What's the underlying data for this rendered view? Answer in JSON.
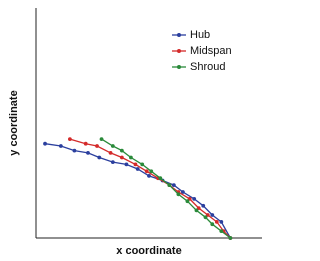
{
  "chart_data": {
    "type": "line",
    "xlabel": "x coordinate",
    "ylabel": "y coordinate",
    "xlim": [
      0,
      1
    ],
    "ylim": [
      0,
      1
    ],
    "legend": "upper right",
    "series": [
      {
        "name": "Hub",
        "color": "#2b3f9e",
        "x": [
          0.04,
          0.11,
          0.17,
          0.23,
          0.28,
          0.34,
          0.4,
          0.45,
          0.5,
          0.56,
          0.61,
          0.65,
          0.7,
          0.74,
          0.78,
          0.82,
          0.86
        ],
        "values": [
          0.41,
          0.4,
          0.38,
          0.37,
          0.35,
          0.33,
          0.32,
          0.3,
          0.27,
          0.25,
          0.23,
          0.2,
          0.17,
          0.14,
          0.1,
          0.07,
          0
        ]
      },
      {
        "name": "Midspan",
        "color": "#d42a2a",
        "x": [
          0.15,
          0.22,
          0.27,
          0.33,
          0.38,
          0.44,
          0.49,
          0.54,
          0.59,
          0.63,
          0.68,
          0.72,
          0.76,
          0.8,
          0.83,
          0.86
        ],
        "values": [
          0.43,
          0.41,
          0.4,
          0.37,
          0.35,
          0.32,
          0.29,
          0.26,
          0.23,
          0.2,
          0.17,
          0.13,
          0.1,
          0.07,
          0.03,
          0
        ]
      },
      {
        "name": "Shroud",
        "color": "#2a8a3a",
        "x": [
          0.29,
          0.34,
          0.38,
          0.42,
          0.47,
          0.51,
          0.55,
          0.59,
          0.63,
          0.67,
          0.71,
          0.75,
          0.78,
          0.82,
          0.86
        ],
        "values": [
          0.43,
          0.4,
          0.38,
          0.35,
          0.32,
          0.29,
          0.26,
          0.23,
          0.19,
          0.16,
          0.12,
          0.09,
          0.06,
          0.03,
          0
        ]
      }
    ]
  }
}
